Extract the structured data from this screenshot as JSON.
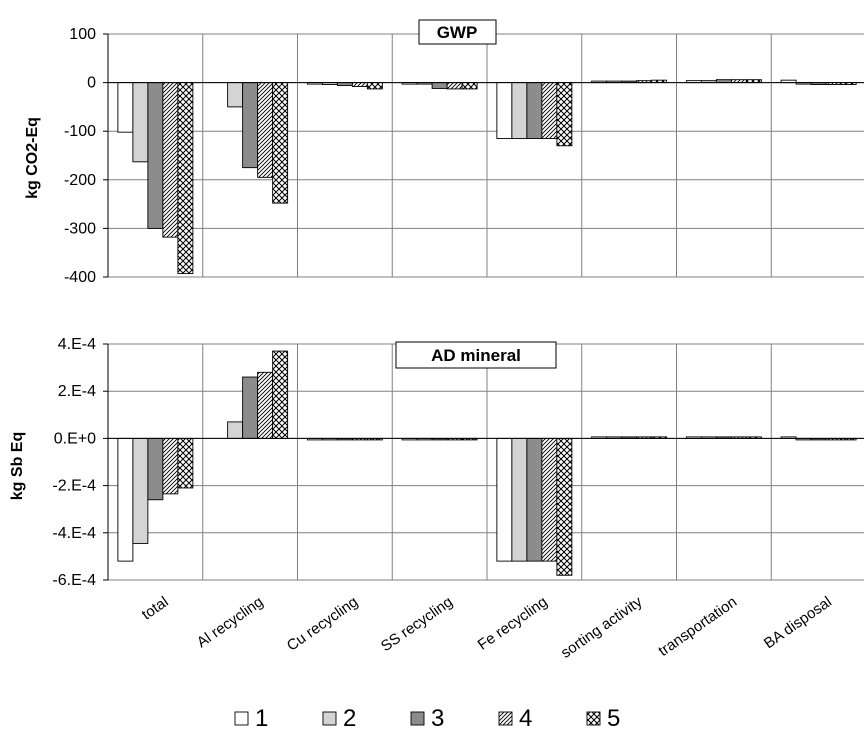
{
  "chart_data": [
    {
      "type": "bar",
      "title": "GWP",
      "ylabel": "kg CO2-Eq",
      "ylim": [
        -400,
        100
      ],
      "yticks": [
        100,
        0,
        -100,
        -200,
        -300,
        -400
      ],
      "ytick_labels": [
        "100",
        "0",
        "-100",
        "-200",
        "-300",
        "-400"
      ],
      "grid": true,
      "categories": [
        "total",
        "Al recycling",
        "Cu recycling",
        "SS recycling",
        "Fe recycling",
        "sorting activity",
        "transportation",
        "BA disposal"
      ],
      "series": [
        {
          "name": "1",
          "values": [
            -102,
            0,
            -3,
            -2,
            -115,
            1,
            4,
            5
          ]
        },
        {
          "name": "2",
          "values": [
            -163,
            -50,
            -4,
            -3,
            -115,
            1,
            4,
            -3
          ]
        },
        {
          "name": "3",
          "values": [
            -300,
            -175,
            -6,
            -12,
            -115,
            1,
            6,
            -4
          ]
        },
        {
          "name": "4",
          "values": [
            -318,
            -195,
            -8,
            -13,
            -115,
            4,
            6,
            -4
          ]
        },
        {
          "name": "5",
          "values": [
            -393,
            -248,
            -13,
            -13,
            -130,
            5,
            6,
            -4
          ]
        }
      ]
    },
    {
      "type": "bar",
      "title": "AD mineral",
      "ylabel": "kg Sb Eq",
      "ylim": [
        -0.0006,
        0.0004
      ],
      "yticks": [
        0.0004,
        0.0002,
        0,
        -0.0002,
        -0.0004,
        -0.0006
      ],
      "ytick_labels": [
        "4.E-4",
        "2.E-4",
        "0.E+0",
        "-2.E-4",
        "-4.E-4",
        "-6.E-4"
      ],
      "grid": true,
      "categories": [
        "total",
        "Al recycling",
        "Cu recycling",
        "SS recycling",
        "Fe recycling",
        "sorting activity",
        "transportation",
        "BA disposal"
      ],
      "series": [
        {
          "name": "1",
          "values": [
            -0.00052,
            0,
            -3e-06,
            -2e-06,
            -0.00052,
            3e-06,
            3e-06,
            4e-06
          ]
        },
        {
          "name": "2",
          "values": [
            -0.000445,
            7e-05,
            -3e-06,
            -2e-06,
            -0.00052,
            3e-06,
            3e-06,
            -3e-06
          ]
        },
        {
          "name": "3",
          "values": [
            -0.00026,
            0.00026,
            -3e-06,
            -2e-06,
            -0.00052,
            3e-06,
            3e-06,
            -3e-06
          ]
        },
        {
          "name": "4",
          "values": [
            -0.000235,
            0.00028,
            -3e-06,
            -2e-06,
            -0.00052,
            3e-06,
            3e-06,
            -3e-06
          ]
        },
        {
          "name": "5",
          "values": [
            -0.00021,
            0.00037,
            -3e-06,
            -2e-06,
            -0.00058,
            3e-06,
            3e-06,
            -3e-06
          ]
        }
      ]
    }
  ],
  "legend": {
    "position": "bottom",
    "items": [
      {
        "label": "1",
        "pattern": "white"
      },
      {
        "label": "2",
        "pattern": "light-gray"
      },
      {
        "label": "3",
        "pattern": "dark-gray"
      },
      {
        "label": "4",
        "pattern": "diagonal-hatch"
      },
      {
        "label": "5",
        "pattern": "cross-hatch"
      }
    ]
  },
  "colors": {
    "fill_1": "#ffffff",
    "fill_2": "#d4d4d4",
    "fill_3": "#8c8c8c",
    "grid": "#808080",
    "stroke": "#000000"
  }
}
